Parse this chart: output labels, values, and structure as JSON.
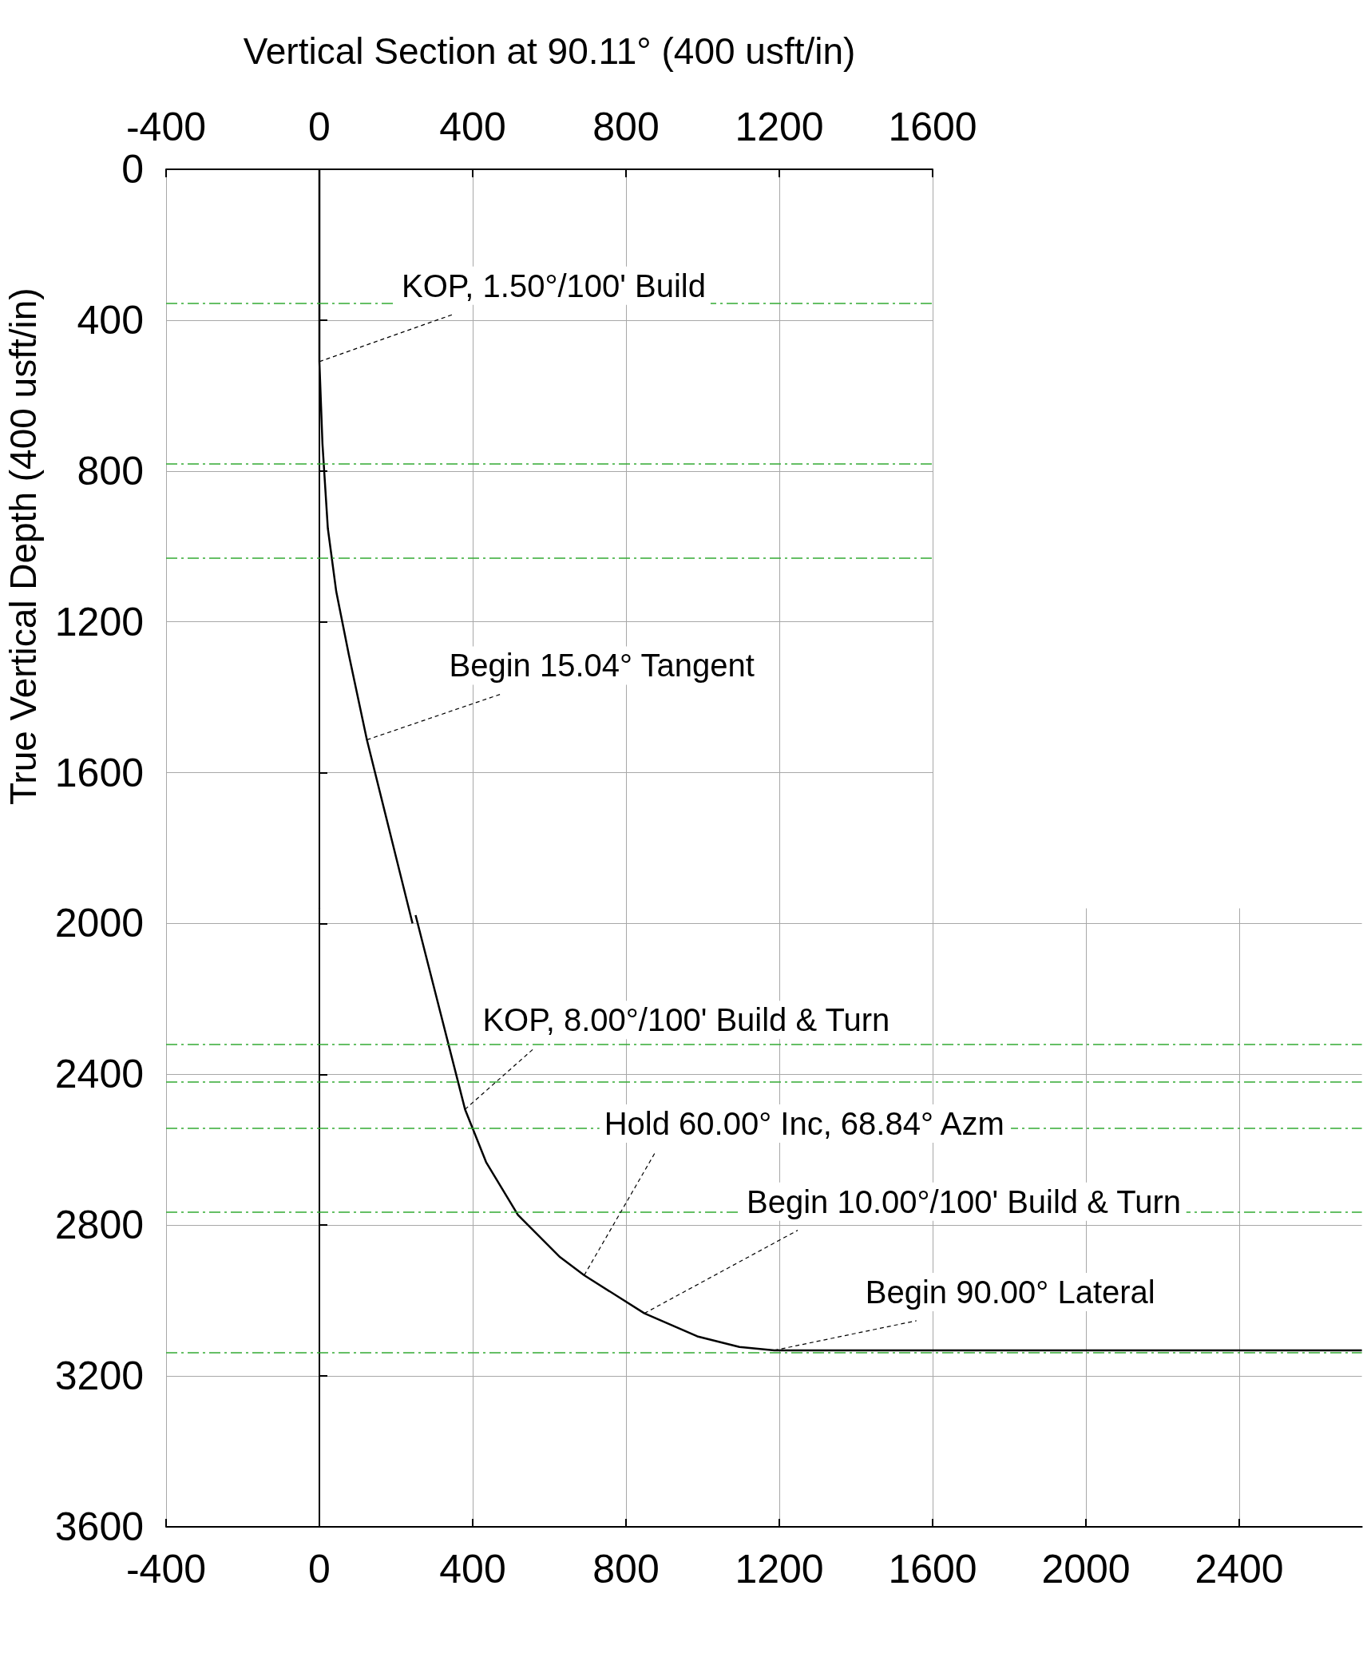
{
  "chart_data": [
    {
      "type": "line",
      "xlabel": "Vertical Section at 90.11° (400 usft/in)",
      "ylabel": "True Vertical Depth (400 usft/in)",
      "xlim": [
        -400,
        1600
      ],
      "xticks": [
        -400,
        0,
        400,
        800,
        1200,
        1600
      ],
      "ylim": [
        2000,
        0
      ],
      "yticks": [
        0,
        400,
        800,
        1200,
        1600
      ],
      "grid": true,
      "series": [
        {
          "color": "#000000",
          "x": [
            0,
            0,
            8,
            22,
            44,
            77,
            124,
            243
          ],
          "values": [
            0,
            510,
            728,
            952,
            1120,
            1288,
            1513,
            2000
          ]
        }
      ],
      "ref_lines": [
        {
          "axis": "y",
          "value": 356,
          "color": "#33aa33",
          "line_style": "dashed"
        },
        {
          "axis": "y",
          "value": 780,
          "color": "#33aa33",
          "line_style": "dashed"
        },
        {
          "axis": "y",
          "value": 1030,
          "color": "#33aa33",
          "line_style": "dashed"
        }
      ],
      "annotations": [
        {
          "text": "KOP, 1.50°/100' Build",
          "x": 0,
          "y": 510
        },
        {
          "text": "Begin 15.04° Tangent",
          "x": 124,
          "y": 1513
        }
      ]
    },
    {
      "type": "line",
      "xlim": [
        -400,
        2720
      ],
      "xticks": [
        -400,
        0,
        400,
        800,
        1200,
        1600,
        2000,
        2400
      ],
      "ylim": [
        3600,
        1960
      ],
      "yticks": [
        2000,
        2400,
        2800,
        3200,
        3600
      ],
      "grid": true,
      "series": [
        {
          "color": "#000000",
          "x": [
            251,
            380,
            435,
            518,
            628,
            691,
            848,
            986,
            1096,
            1187,
            2720
          ],
          "values": [
            1978,
            2493,
            2633,
            2773,
            2885,
            2933,
            3034,
            3095,
            3123,
            3132,
            3132
          ]
        }
      ],
      "ref_lines": [
        {
          "axis": "y",
          "value": 2321,
          "color": "#33aa33",
          "line_style": "dashed"
        },
        {
          "axis": "y",
          "value": 2420,
          "color": "#33aa33",
          "line_style": "dashed"
        },
        {
          "axis": "y",
          "value": 2543,
          "color": "#33aa33",
          "line_style": "dashed"
        },
        {
          "axis": "y",
          "value": 2765,
          "color": "#33aa33",
          "line_style": "dashed"
        },
        {
          "axis": "y",
          "value": 3138,
          "color": "#33aa33",
          "line_style": "dashed"
        }
      ],
      "annotations": [
        {
          "text": "KOP, 8.00°/100' Build & Turn",
          "x": 380,
          "y": 2493
        },
        {
          "text": "Hold 60.00° Inc, 68.84° Azm",
          "x": 691,
          "y": 2933
        },
        {
          "text": "Begin 10.00°/100' Build & Turn",
          "x": 848,
          "y": 3034
        },
        {
          "text": "Begin 90.00° Lateral",
          "x": 1187,
          "y": 3132
        }
      ]
    }
  ]
}
